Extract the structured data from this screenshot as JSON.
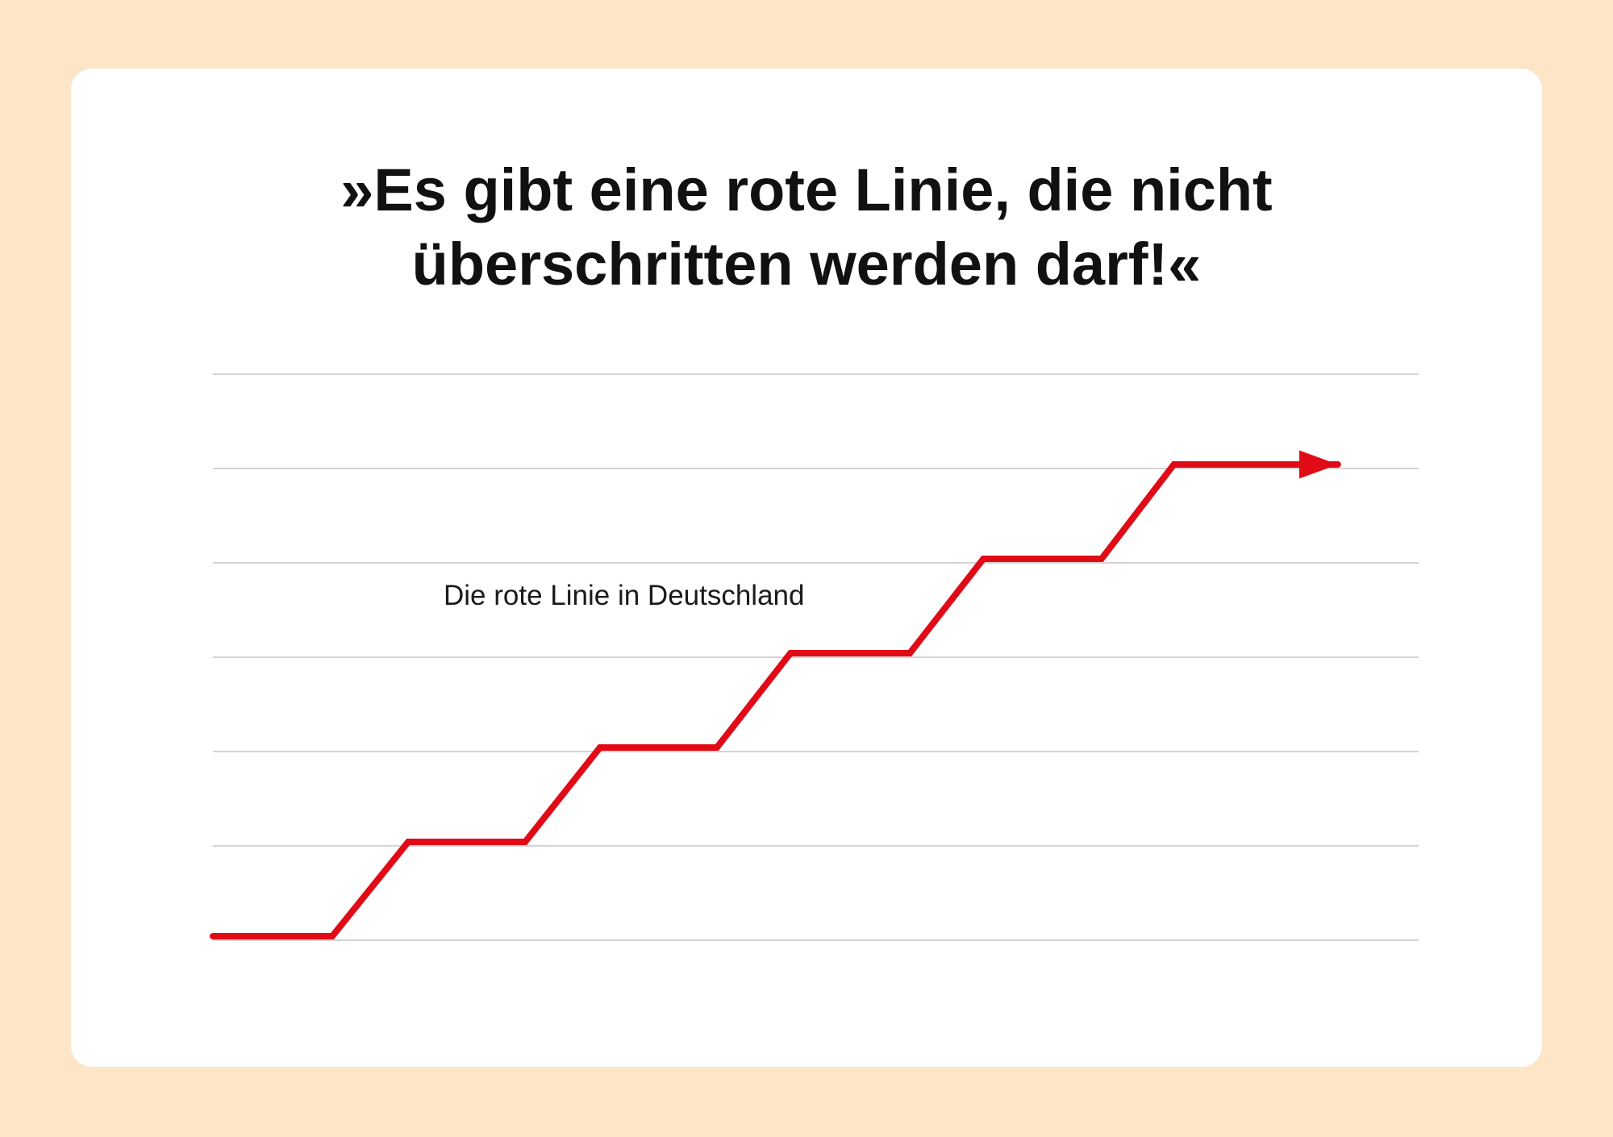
{
  "chart_data": {
    "type": "line",
    "title": "»Es gibt eine rote Linie, die nicht überschritten werden darf!«",
    "annotation": "Die rote Linie in Deutschland",
    "x": [
      0,
      9.9,
      16.2,
      25.9,
      32.1,
      41.8,
      47.9,
      57.8,
      63.9,
      73.7,
      79.7,
      93.3
    ],
    "values": [
      0,
      0,
      1,
      1,
      2,
      2,
      3,
      3,
      4,
      4,
      5,
      5
    ],
    "color": "#e10a17",
    "xlim": [
      0,
      100
    ],
    "ylim": [
      0,
      6
    ],
    "yticks": [
      0,
      1,
      2,
      3,
      4,
      5,
      6
    ],
    "grid": true
  }
}
